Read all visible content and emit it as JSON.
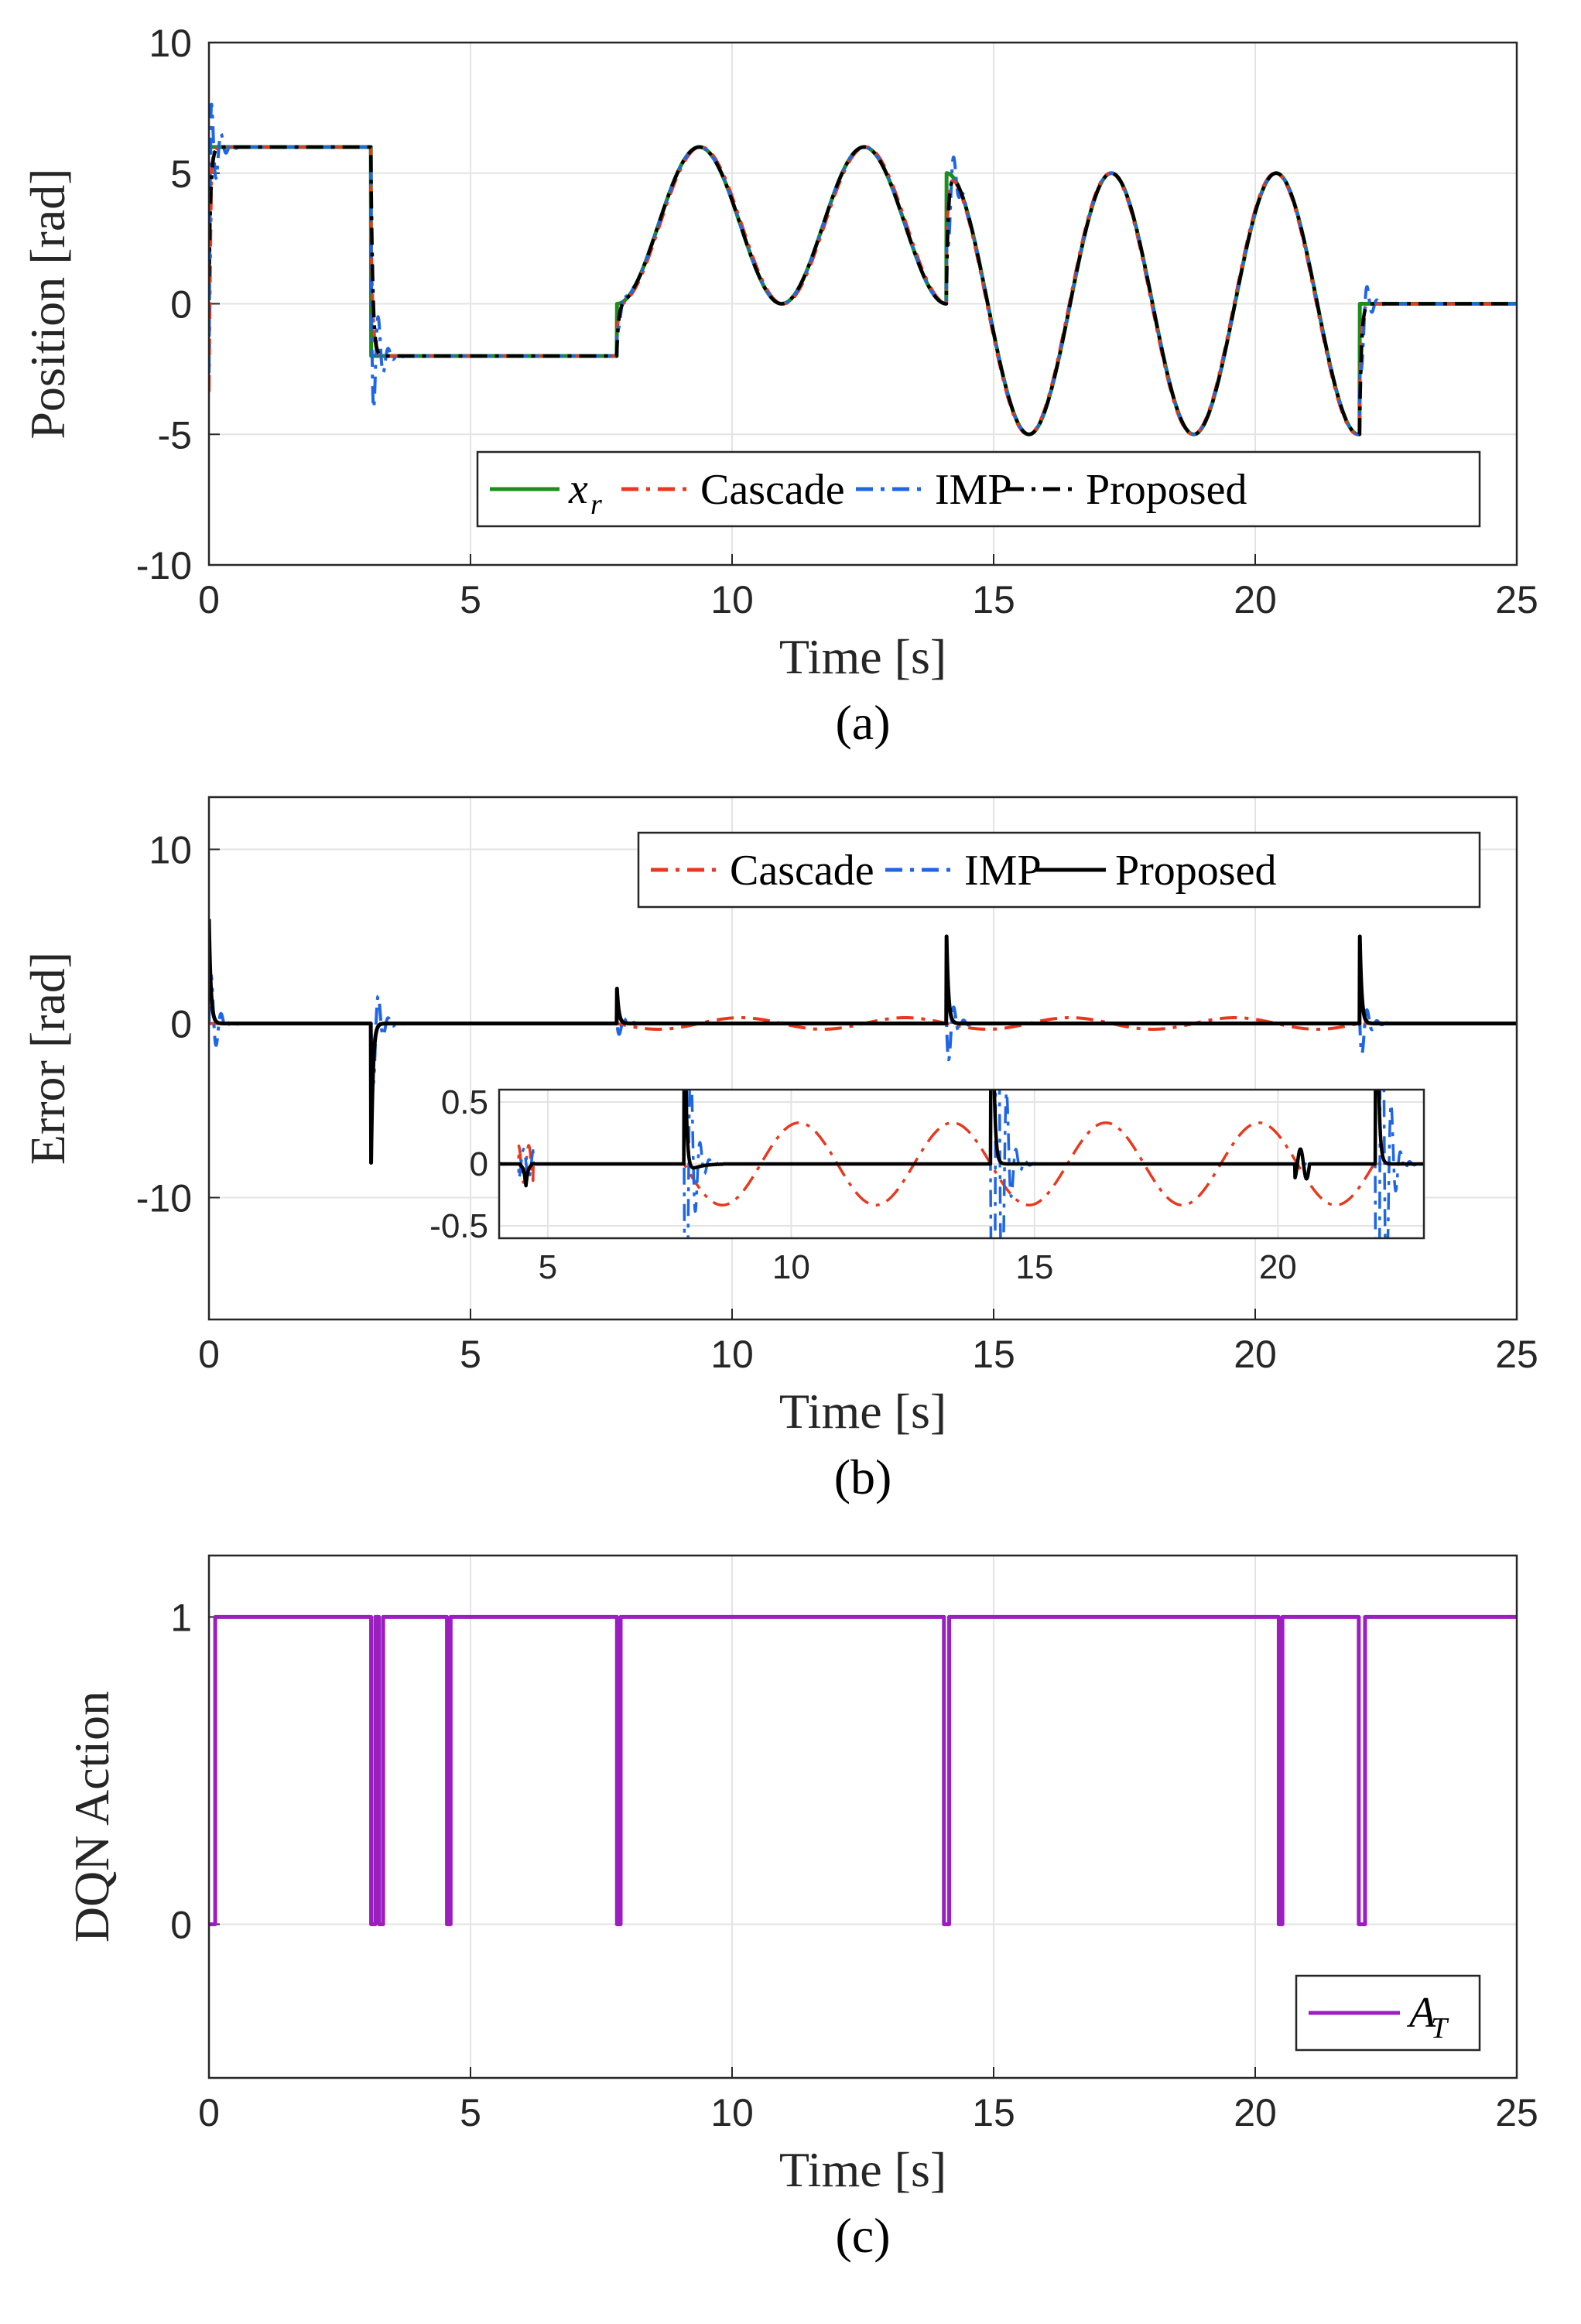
{
  "chart_data": [
    {
      "type": "line",
      "caption": "(a)",
      "xlabel": "Time [s]",
      "ylabel": "Position [rad]",
      "xlim": [
        0,
        25
      ],
      "ylim": [
        -10,
        10
      ],
      "xticks": [
        "0",
        "5",
        "10",
        "15",
        "20",
        "25"
      ],
      "yticks": [
        "10",
        "5",
        "0",
        "-5",
        "-10"
      ],
      "grid": true,
      "legend_position": "bottom-right",
      "legend": [
        {
          "name": "x",
          "subscript": "r",
          "color": "#1a8f1a",
          "dash": "solid"
        },
        {
          "name": "Cascade",
          "color": "#e8381e",
          "dash": "dashdot"
        },
        {
          "name": "IMP",
          "color": "#1f66e6",
          "dash": "dashdot"
        },
        {
          "name": "Proposed",
          "color": "#000000",
          "dash": "dashdot"
        }
      ],
      "reference_segments": [
        {
          "kind": "const",
          "t": [
            0,
            3.1
          ],
          "value": 6
        },
        {
          "kind": "const",
          "t": [
            3.1,
            7.8
          ],
          "value": -2
        },
        {
          "kind": "cosine",
          "t": [
            7.8,
            14.1
          ],
          "offset": 3,
          "amplitude": 3,
          "period": 3.15,
          "phase_start": 7.8,
          "note": "oscillates between 0 and 6"
        },
        {
          "kind": "cosine",
          "t": [
            14.1,
            22.0
          ],
          "offset": 0,
          "amplitude": 5,
          "period": 3.15,
          "phase_start": 14.1,
          "note": "oscillates between 5 and -5"
        },
        {
          "kind": "const",
          "t": [
            22.0,
            25
          ],
          "value": 0
        }
      ],
      "imp_spikes": [
        {
          "t": 0.15,
          "peak": 9.2
        },
        {
          "t": 3.3,
          "peak": -6.2
        },
        {
          "t": 7.9,
          "peak": 1.2
        },
        {
          "t": 14.2,
          "peak": 7.5
        },
        {
          "t": 22.1,
          "peak": 2.7
        }
      ]
    },
    {
      "type": "line",
      "caption": "(b)",
      "xlabel": "Time [s]",
      "ylabel": "Error [rad]",
      "xlim": [
        0,
        25
      ],
      "ylim": [
        -17,
        13
      ],
      "xticks": [
        "0",
        "5",
        "10",
        "15",
        "20",
        "25"
      ],
      "yticks": [
        "10",
        "0",
        "-10"
      ],
      "grid": true,
      "legend_position": "top-right",
      "legend": [
        {
          "name": "Cascade",
          "color": "#e8381e",
          "dash": "dashdot"
        },
        {
          "name": "IMP",
          "color": "#1f66e6",
          "dash": "dashdot"
        },
        {
          "name": "Proposed",
          "color": "#000000",
          "dash": "solid"
        }
      ],
      "proposed_spikes": [
        {
          "t": 0.05,
          "peak": 6.0
        },
        {
          "t": 3.15,
          "peak": -8.0
        },
        {
          "t": 7.8,
          "peak": 2.0
        },
        {
          "t": 14.1,
          "peak": 5.0
        },
        {
          "t": 22.0,
          "peak": 5.0
        }
      ],
      "cascade_oscillation_amplitude": 0.35,
      "inset": {
        "xlim": [
          4,
          23
        ],
        "ylim": [
          -0.6,
          0.6
        ],
        "xticks": [
          "5",
          "10",
          "15",
          "20"
        ],
        "yticks": [
          "0.5",
          "0",
          "-0.5"
        ]
      }
    },
    {
      "type": "line",
      "caption": "(c)",
      "xlabel": "Time [s]",
      "ylabel": "DQN Action",
      "xlim": [
        0,
        25
      ],
      "ylim": [
        -0.5,
        1.2
      ],
      "xticks": [
        "0",
        "5",
        "10",
        "15",
        "20",
        "25"
      ],
      "yticks": [
        "1",
        "0"
      ],
      "grid": true,
      "legend_position": "bottom-right",
      "legend": [
        {
          "name": "A",
          "subscript": "T",
          "color": "#9b1fbf",
          "dash": "solid"
        }
      ],
      "action_zero_intervals": [
        [
          0,
          0.12
        ],
        [
          3.1,
          3.18
        ],
        [
          3.25,
          3.33
        ],
        [
          4.55,
          4.62
        ],
        [
          7.8,
          7.87
        ],
        [
          14.05,
          14.15
        ],
        [
          20.45,
          20.52
        ],
        [
          21.98,
          22.1
        ]
      ]
    }
  ]
}
